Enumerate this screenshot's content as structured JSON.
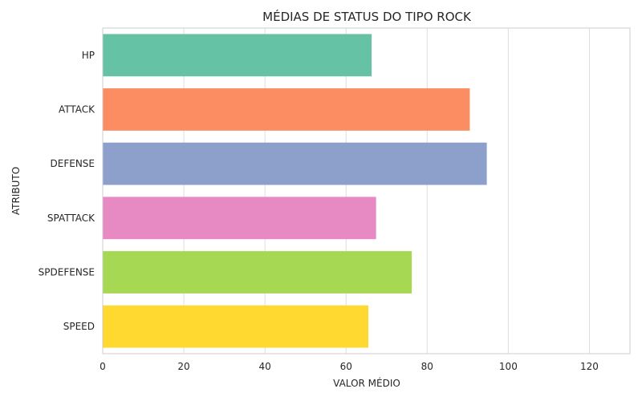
{
  "chart_data": {
    "type": "bar",
    "orientation": "horizontal",
    "title": "MÉDIAS DE STATUS DO TIPO ROCK",
    "xlabel": "VALOR MÉDIO",
    "ylabel": "ATRIBUTO",
    "categories": [
      "HP",
      "ATTACK",
      "DEFENSE",
      "SPATTACK",
      "SPDEFENSE",
      "SPEED"
    ],
    "values": [
      66.3,
      90.5,
      94.7,
      67.4,
      76.2,
      65.5
    ],
    "colors": [
      "#66c2a5",
      "#fc8d62",
      "#8da0cb",
      "#e78ac3",
      "#a6d854",
      "#ffd92f"
    ],
    "xlim": [
      0,
      130
    ],
    "xticks": [
      0,
      20,
      40,
      60,
      80,
      100,
      120
    ],
    "grid": true,
    "grid_axis": "x"
  }
}
